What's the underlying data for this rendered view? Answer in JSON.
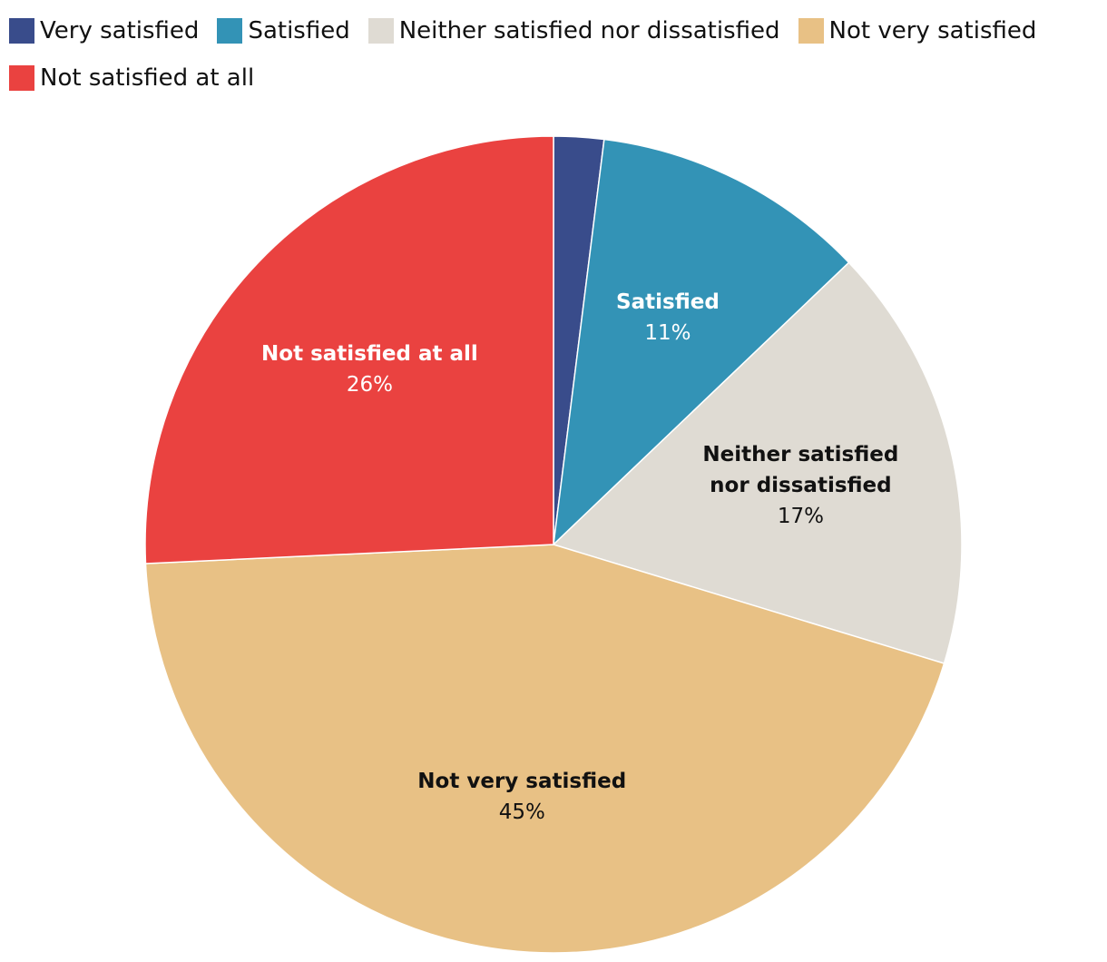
{
  "chart_data": {
    "type": "pie",
    "categories": [
      "Very satisfied",
      "Satisfied",
      "Neither satisfied nor dissatisfied",
      "Not very satisfied",
      "Not satisfied at all"
    ],
    "values": [
      2,
      11,
      17,
      45,
      26
    ],
    "value_labels": [
      null,
      "11%",
      "17%",
      "45%",
      "26%"
    ],
    "colors": [
      "#394c8b",
      "#3393b6",
      "#dfdbd3",
      "#e8c185",
      "#ea4240"
    ],
    "legend": "top"
  }
}
